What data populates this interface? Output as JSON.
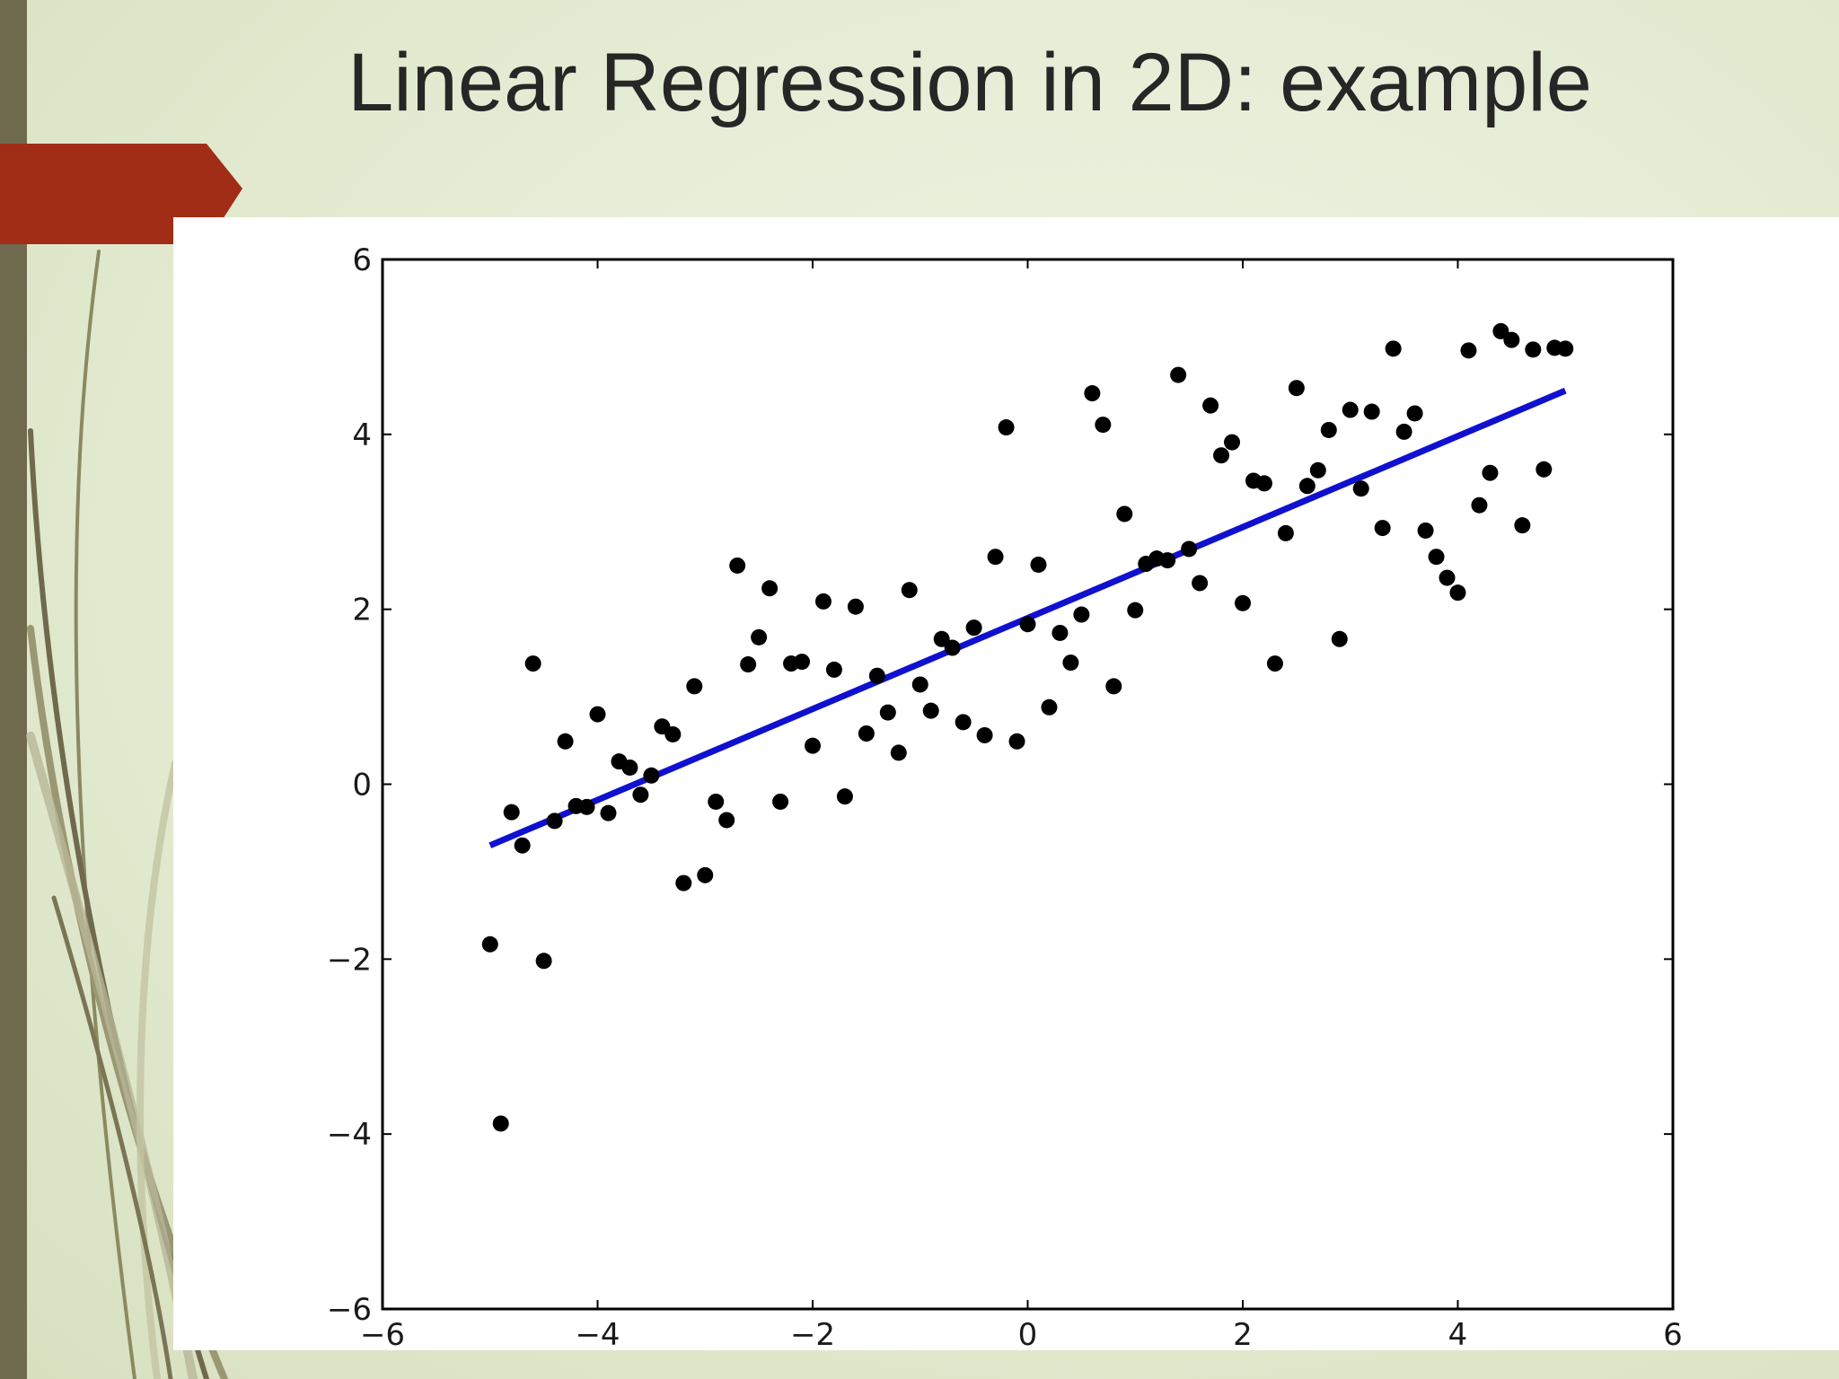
{
  "slide": {
    "title": "Linear Regression in 2D: example"
  },
  "colors": {
    "accent": "#a12d16",
    "side_bar": "#6f6a4d",
    "points": "#000000",
    "fit_line": "#1010d0"
  },
  "chart_data": {
    "type": "scatter",
    "title": "",
    "xlabel": "",
    "ylabel": "",
    "xlim": [
      -6,
      6
    ],
    "ylim": [
      -6,
      6
    ],
    "xticks": [
      -6,
      -4,
      -2,
      0,
      2,
      4,
      6
    ],
    "yticks": [
      -6,
      -4,
      -2,
      0,
      2,
      4,
      6
    ],
    "xtick_labels": [
      "−6",
      "−4",
      "−2",
      "0",
      "2",
      "4",
      "6"
    ],
    "ytick_labels": [
      "−6",
      "−4",
      "−2",
      "0",
      "2",
      "4",
      "6"
    ],
    "grid": false,
    "points": {
      "x": [
        -5.0,
        -4.9,
        -4.8,
        -4.7,
        -4.6,
        -4.5,
        -4.4,
        -4.3,
        -4.2,
        -4.1,
        -4.0,
        -3.9,
        -3.8,
        -3.7,
        -3.6,
        -3.5,
        -3.4,
        -3.3,
        -3.2,
        -3.1,
        -3.0,
        -2.9,
        -2.8,
        -2.7,
        -2.6,
        -2.5,
        -2.4,
        -2.3,
        -2.2,
        -2.1,
        -2.0,
        -1.9,
        -1.8,
        -1.7,
        -1.6,
        -1.5,
        -1.4,
        -1.3,
        -1.2,
        -1.1,
        -1.0,
        -0.9,
        -0.8,
        -0.7,
        -0.6,
        -0.5,
        -0.4,
        -0.3,
        -0.2,
        -0.1,
        0.0,
        0.1,
        0.2,
        0.3,
        0.4,
        0.5,
        0.6,
        0.7,
        0.8,
        0.9,
        1.0,
        1.1,
        1.2,
        1.3,
        1.4,
        1.5,
        1.6,
        1.7,
        1.8,
        1.9,
        2.0,
        2.1,
        2.2,
        2.3,
        2.4,
        2.5,
        2.6,
        2.7,
        2.8,
        2.9,
        3.0,
        3.1,
        3.2,
        3.3,
        3.4,
        3.5,
        3.6,
        3.7,
        3.8,
        3.9,
        4.0,
        4.1,
        4.2,
        4.3,
        4.4,
        4.5,
        4.6,
        4.7,
        4.8,
        4.9,
        5.0
      ],
      "y": [
        -1.83,
        -3.88,
        -0.32,
        -0.7,
        1.38,
        -2.02,
        -0.42,
        0.49,
        -0.25,
        -0.26,
        0.8,
        -0.33,
        0.26,
        0.19,
        -0.12,
        0.1,
        0.66,
        0.57,
        -1.13,
        1.12,
        -1.04,
        -0.2,
        -0.41,
        2.5,
        1.37,
        1.68,
        2.24,
        -0.2,
        1.38,
        1.4,
        0.44,
        2.09,
        1.31,
        -0.14,
        2.03,
        0.58,
        1.24,
        0.82,
        0.36,
        2.22,
        1.14,
        0.84,
        1.66,
        1.56,
        0.71,
        1.79,
        0.56,
        2.6,
        4.08,
        0.49,
        1.83,
        2.51,
        0.88,
        1.73,
        1.39,
        1.94,
        4.47,
        4.11,
        1.12,
        3.09,
        1.99,
        2.52,
        2.58,
        2.56,
        4.68,
        2.69,
        2.3,
        4.33,
        3.76,
        3.91,
        2.07,
        3.47,
        3.44,
        1.38,
        2.87,
        4.53,
        3.41,
        3.59,
        4.05,
        1.66,
        4.28,
        3.38,
        4.26,
        2.93,
        4.98,
        4.03,
        4.24,
        2.9,
        2.6,
        2.36,
        2.19,
        4.96,
        3.19,
        3.56,
        5.18,
        5.08,
        2.96,
        4.97,
        3.6,
        4.99,
        4.98
      ]
    },
    "fit_line": {
      "x": [
        -5.0,
        5.0
      ],
      "y": [
        -0.7,
        4.5
      ]
    }
  }
}
